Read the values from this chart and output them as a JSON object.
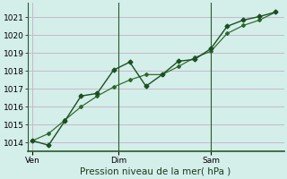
{
  "xlabel": "Pression niveau de la mer( hPa )",
  "bg_color": "#d4eeea",
  "grid_color": "#c8b8c8",
  "line_color1": "#1a5020",
  "line_color2": "#2a6828",
  "ylim": [
    1013.5,
    1021.8
  ],
  "yticks": [
    1014,
    1015,
    1016,
    1017,
    1018,
    1019,
    1020,
    1021
  ],
  "series1_x": [
    0,
    1,
    2,
    3,
    4,
    5,
    6,
    7,
    8,
    9,
    10,
    11,
    12,
    13,
    14,
    15
  ],
  "series1_y": [
    1014.1,
    1013.85,
    1015.2,
    1016.6,
    1016.75,
    1018.05,
    1018.5,
    1017.15,
    1017.8,
    1018.55,
    1018.65,
    1019.25,
    1020.5,
    1020.85,
    1021.05,
    1021.3
  ],
  "series2_x": [
    0,
    1,
    2,
    3,
    4,
    5,
    6,
    7,
    8,
    9,
    10,
    11,
    12,
    13,
    14,
    15
  ],
  "series2_y": [
    1014.1,
    1014.5,
    1015.25,
    1016.0,
    1016.6,
    1017.1,
    1017.5,
    1017.8,
    1017.8,
    1018.25,
    1018.75,
    1019.1,
    1020.1,
    1020.55,
    1020.85,
    1021.3
  ],
  "vline_x": [
    5.3,
    11.0
  ],
  "xtick_positions": [
    0,
    5.3,
    11.0
  ],
  "xtick_labels": [
    "Ven",
    "Dim",
    "Sam"
  ],
  "marker_size": 2.5,
  "linewidth": 1.0,
  "xlabel_fontsize": 7.5,
  "ytick_fontsize": 6.5,
  "xtick_fontsize": 6.5
}
